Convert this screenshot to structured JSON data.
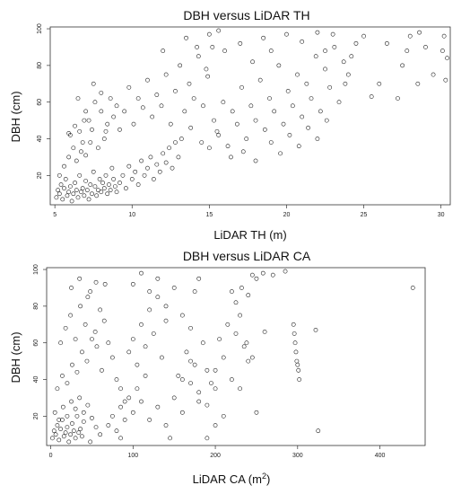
{
  "figure": {
    "charts": [
      {
        "title": "DBH versus LiDAR TH",
        "xlabel": "LiDAR TH (m)",
        "ylabel": "DBH (cm)"
      },
      {
        "title": "DBH versus LiDAR CA",
        "xlabel": "LiDAR CA (m",
        "xlabel_sup": "2",
        "xlabel_suffix": ")",
        "ylabel": "DBH (cm)"
      }
    ]
  },
  "chart_data": [
    {
      "type": "scatter",
      "title": "DBH versus LiDAR TH",
      "xlabel": "LiDAR TH (m)",
      "ylabel": "DBH (cm)",
      "xlim": [
        4.7,
        30.6
      ],
      "ylim": [
        4,
        101
      ],
      "xticks": [
        5,
        10,
        15,
        20,
        25,
        30
      ],
      "yticks": [
        20,
        40,
        60,
        80,
        100
      ],
      "grid": false,
      "points": [
        [
          5.1,
          8
        ],
        [
          5.2,
          12
        ],
        [
          5.3,
          10
        ],
        [
          5.4,
          15
        ],
        [
          5.5,
          7
        ],
        [
          5.6,
          13
        ],
        [
          5.7,
          18
        ],
        [
          5.8,
          9
        ],
        [
          5.9,
          11
        ],
        [
          6.0,
          14
        ],
        [
          6.1,
          6
        ],
        [
          6.2,
          10
        ],
        [
          6.3,
          16
        ],
        [
          6.4,
          12
        ],
        [
          6.5,
          8
        ],
        [
          6.6,
          20
        ],
        [
          6.7,
          11
        ],
        [
          6.8,
          13
        ],
        [
          6.9,
          9
        ],
        [
          7.0,
          17
        ],
        [
          7.1,
          12
        ],
        [
          7.2,
          7
        ],
        [
          7.3,
          15
        ],
        [
          7.4,
          10
        ],
        [
          7.5,
          22
        ],
        [
          7.6,
          14
        ],
        [
          7.7,
          9
        ],
        [
          7.8,
          12
        ],
        [
          7.9,
          18
        ],
        [
          8.0,
          11
        ],
        [
          8.1,
          16
        ],
        [
          8.2,
          13
        ],
        [
          8.3,
          20
        ],
        [
          8.4,
          10
        ],
        [
          8.5,
          15
        ],
        [
          8.6,
          12
        ],
        [
          8.7,
          24
        ],
        [
          8.8,
          18
        ],
        [
          8.9,
          14
        ],
        [
          9.0,
          11
        ],
        [
          5.3,
          20
        ],
        [
          5.6,
          25
        ],
        [
          5.9,
          30
        ],
        [
          6.0,
          42
        ],
        [
          6.2,
          35
        ],
        [
          6.4,
          28
        ],
        [
          6.6,
          44
        ],
        [
          6.8,
          38
        ],
        [
          7.0,
          31
        ],
        [
          7.2,
          50
        ],
        [
          7.4,
          45
        ],
        [
          7.6,
          60
        ],
        [
          7.8,
          35
        ],
        [
          8.0,
          55
        ],
        [
          8.2,
          40
        ],
        [
          8.4,
          48
        ],
        [
          8.6,
          62
        ],
        [
          8.8,
          52
        ],
        [
          9.0,
          58
        ],
        [
          9.2,
          45
        ],
        [
          6.5,
          62
        ],
        [
          7.0,
          55
        ],
        [
          7.5,
          70
        ],
        [
          8.0,
          65
        ],
        [
          6.9,
          50
        ],
        [
          6.3,
          47
        ],
        [
          5.9,
          43
        ],
        [
          7.3,
          38
        ],
        [
          6.7,
          33
        ],
        [
          8.3,
          44
        ],
        [
          9.2,
          16
        ],
        [
          9.4,
          20
        ],
        [
          9.6,
          13
        ],
        [
          9.8,
          25
        ],
        [
          10.0,
          18
        ],
        [
          10.2,
          22
        ],
        [
          10.4,
          15
        ],
        [
          10.6,
          28
        ],
        [
          10.8,
          20
        ],
        [
          11.0,
          24
        ],
        [
          11.2,
          30
        ],
        [
          11.4,
          18
        ],
        [
          11.6,
          26
        ],
        [
          11.8,
          22
        ],
        [
          12.0,
          32
        ],
        [
          12.2,
          27
        ],
        [
          12.4,
          35
        ],
        [
          12.6,
          24
        ],
        [
          12.8,
          38
        ],
        [
          13.0,
          30
        ],
        [
          9.5,
          55
        ],
        [
          9.8,
          68
        ],
        [
          10.1,
          48
        ],
        [
          10.4,
          62
        ],
        [
          10.7,
          57
        ],
        [
          11.0,
          72
        ],
        [
          11.3,
          52
        ],
        [
          11.6,
          64
        ],
        [
          11.9,
          58
        ],
        [
          12.2,
          75
        ],
        [
          12.5,
          48
        ],
        [
          12.8,
          66
        ],
        [
          13.1,
          80
        ],
        [
          13.4,
          55
        ],
        [
          13.7,
          70
        ],
        [
          14.0,
          62
        ],
        [
          14.3,
          85
        ],
        [
          14.6,
          58
        ],
        [
          14.9,
          74
        ],
        [
          15.2,
          90
        ],
        [
          12.0,
          88
        ],
        [
          13.5,
          95
        ],
        [
          14.2,
          90
        ],
        [
          15.0,
          97
        ],
        [
          15.6,
          99
        ],
        [
          14.8,
          78
        ],
        [
          13.8,
          46
        ],
        [
          13.2,
          40
        ],
        [
          14.5,
          38
        ],
        [
          15.5,
          44
        ],
        [
          15.0,
          35
        ],
        [
          15.3,
          50
        ],
        [
          15.6,
          42
        ],
        [
          15.9,
          60
        ],
        [
          16.2,
          36
        ],
        [
          16.5,
          55
        ],
        [
          16.8,
          48
        ],
        [
          17.1,
          68
        ],
        [
          17.4,
          40
        ],
        [
          17.7,
          58
        ],
        [
          18.0,
          50
        ],
        [
          18.3,
          72
        ],
        [
          18.6,
          45
        ],
        [
          18.9,
          62
        ],
        [
          19.2,
          55
        ],
        [
          19.5,
          80
        ],
        [
          19.8,
          48
        ],
        [
          20.1,
          66
        ],
        [
          20.4,
          58
        ],
        [
          20.7,
          75
        ],
        [
          21.0,
          52
        ],
        [
          21.3,
          70
        ],
        [
          21.6,
          62
        ],
        [
          21.9,
          85
        ],
        [
          22.2,
          55
        ],
        [
          22.5,
          78
        ],
        [
          22.8,
          68
        ],
        [
          23.1,
          90
        ],
        [
          23.4,
          60
        ],
        [
          23.7,
          82
        ],
        [
          16.0,
          88
        ],
        [
          17.0,
          92
        ],
        [
          17.8,
          82
        ],
        [
          18.5,
          95
        ],
        [
          19.0,
          88
        ],
        [
          20.0,
          97
        ],
        [
          21.0,
          93
        ],
        [
          22.0,
          98
        ],
        [
          22.5,
          88
        ],
        [
          23.0,
          97
        ],
        [
          16.4,
          30
        ],
        [
          17.2,
          33
        ],
        [
          18.0,
          28
        ],
        [
          19.0,
          38
        ],
        [
          19.6,
          32
        ],
        [
          20.2,
          42
        ],
        [
          20.8,
          36
        ],
        [
          21.4,
          46
        ],
        [
          22.0,
          40
        ],
        [
          22.6,
          50
        ],
        [
          23.8,
          70
        ],
        [
          24.0,
          75
        ],
        [
          24.5,
          92
        ],
        [
          25.0,
          96
        ],
        [
          25.5,
          63
        ],
        [
          26.0,
          70
        ],
        [
          27.5,
          80
        ],
        [
          27.8,
          88
        ],
        [
          28.0,
          96
        ],
        [
          28.6,
          98
        ],
        [
          27.2,
          62
        ],
        [
          28.5,
          70
        ],
        [
          29.5,
          75
        ],
        [
          30.2,
          96
        ],
        [
          30.4,
          84
        ],
        [
          30.3,
          72
        ],
        [
          30.1,
          88
        ],
        [
          24.2,
          85
        ],
        [
          26.5,
          92
        ],
        [
          29.0,
          90
        ]
      ]
    },
    {
      "type": "scatter",
      "title": "DBH versus LiDAR CA",
      "xlabel": "LiDAR CA (m²)",
      "ylabel": "DBH (cm)",
      "xlim": [
        -5,
        455
      ],
      "ylim": [
        4,
        101
      ],
      "xticks": [
        0,
        100,
        200,
        300,
        400
      ],
      "yticks": [
        20,
        40,
        60,
        80,
        100
      ],
      "grid": false,
      "points": [
        [
          2,
          8
        ],
        [
          4,
          12
        ],
        [
          6,
          10
        ],
        [
          8,
          15
        ],
        [
          10,
          7
        ],
        [
          12,
          13
        ],
        [
          14,
          18
        ],
        [
          16,
          9
        ],
        [
          18,
          11
        ],
        [
          20,
          14
        ],
        [
          22,
          6
        ],
        [
          24,
          10
        ],
        [
          26,
          16
        ],
        [
          28,
          12
        ],
        [
          30,
          8
        ],
        [
          32,
          20
        ],
        [
          34,
          11
        ],
        [
          36,
          13
        ],
        [
          38,
          9
        ],
        [
          40,
          17
        ],
        [
          5,
          22
        ],
        [
          10,
          18
        ],
        [
          15,
          25
        ],
        [
          20,
          20
        ],
        [
          25,
          28
        ],
        [
          30,
          24
        ],
        [
          35,
          30
        ],
        [
          40,
          22
        ],
        [
          45,
          26
        ],
        [
          50,
          19
        ],
        [
          8,
          35
        ],
        [
          14,
          42
        ],
        [
          20,
          38
        ],
        [
          26,
          48
        ],
        [
          32,
          44
        ],
        [
          38,
          55
        ],
        [
          44,
          50
        ],
        [
          50,
          62
        ],
        [
          56,
          58
        ],
        [
          62,
          45
        ],
        [
          12,
          60
        ],
        [
          18,
          68
        ],
        [
          24,
          75
        ],
        [
          30,
          62
        ],
        [
          36,
          80
        ],
        [
          42,
          70
        ],
        [
          48,
          88
        ],
        [
          54,
          66
        ],
        [
          60,
          78
        ],
        [
          66,
          92
        ],
        [
          25,
          90
        ],
        [
          35,
          95
        ],
        [
          45,
          85
        ],
        [
          55,
          93
        ],
        [
          65,
          72
        ],
        [
          70,
          60
        ],
        [
          75,
          52
        ],
        [
          80,
          40
        ],
        [
          85,
          35
        ],
        [
          90,
          28
        ],
        [
          70,
          15
        ],
        [
          75,
          20
        ],
        [
          80,
          12
        ],
        [
          85,
          25
        ],
        [
          90,
          18
        ],
        [
          95,
          30
        ],
        [
          100,
          22
        ],
        [
          105,
          35
        ],
        [
          110,
          28
        ],
        [
          115,
          42
        ],
        [
          95,
          55
        ],
        [
          100,
          62
        ],
        [
          105,
          48
        ],
        [
          110,
          70
        ],
        [
          115,
          58
        ],
        [
          120,
          78
        ],
        [
          125,
          65
        ],
        [
          130,
          85
        ],
        [
          135,
          52
        ],
        [
          140,
          72
        ],
        [
          100,
          92
        ],
        [
          110,
          98
        ],
        [
          120,
          88
        ],
        [
          130,
          95
        ],
        [
          140,
          80
        ],
        [
          150,
          90
        ],
        [
          160,
          75
        ],
        [
          170,
          68
        ],
        [
          175,
          88
        ],
        [
          180,
          95
        ],
        [
          120,
          18
        ],
        [
          130,
          25
        ],
        [
          140,
          15
        ],
        [
          150,
          30
        ],
        [
          160,
          22
        ],
        [
          170,
          38
        ],
        [
          180,
          28
        ],
        [
          190,
          45
        ],
        [
          200,
          35
        ],
        [
          210,
          52
        ],
        [
          145,
          8
        ],
        [
          155,
          42
        ],
        [
          165,
          55
        ],
        [
          175,
          48
        ],
        [
          185,
          60
        ],
        [
          195,
          38
        ],
        [
          205,
          62
        ],
        [
          215,
          70
        ],
        [
          225,
          65
        ],
        [
          235,
          58
        ],
        [
          160,
          40
        ],
        [
          170,
          50
        ],
        [
          180,
          33
        ],
        [
          190,
          26
        ],
        [
          200,
          45
        ],
        [
          210,
          20
        ],
        [
          220,
          40
        ],
        [
          230,
          35
        ],
        [
          240,
          50
        ],
        [
          250,
          22
        ],
        [
          220,
          88
        ],
        [
          225,
          82
        ],
        [
          232,
          90
        ],
        [
          240,
          86
        ],
        [
          245,
          97
        ],
        [
          250,
          95
        ],
        [
          258,
          98
        ],
        [
          270,
          97
        ],
        [
          285,
          99
        ],
        [
          230,
          75
        ],
        [
          295,
          70
        ],
        [
          296,
          65
        ],
        [
          297,
          60
        ],
        [
          298,
          55
        ],
        [
          299,
          50
        ],
        [
          300,
          48
        ],
        [
          301,
          45
        ],
        [
          302,
          40
        ],
        [
          322,
          67
        ],
        [
          325,
          12
        ],
        [
          440,
          90
        ],
        [
          260,
          66
        ],
        [
          245,
          52
        ],
        [
          238,
          60
        ],
        [
          200,
          15
        ],
        [
          190,
          8
        ],
        [
          85,
          8
        ],
        [
          60,
          10
        ],
        [
          48,
          6
        ],
        [
          55,
          14
        ]
      ]
    }
  ]
}
